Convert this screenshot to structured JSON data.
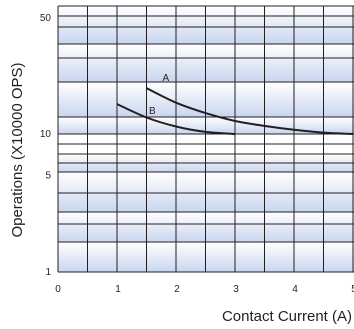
{
  "chart_data": {
    "type": "line",
    "title": "",
    "xlabel": "Contact Current (A)",
    "ylabel": "Operations (X10000 OPS)",
    "xlim": [
      0,
      5.5
    ],
    "ylim": [
      1,
      60
    ],
    "y_scale": "log",
    "x_ticks": [
      "0",
      "1",
      "2",
      "3",
      "4",
      "5"
    ],
    "y_ticks": [
      "1",
      "5",
      "10",
      "50"
    ],
    "grid": true,
    "legend": "none",
    "series": [
      {
        "name": "A",
        "x": [
          1.5,
          2.0,
          2.5,
          3.0,
          3.5,
          4.0,
          4.5,
          5.0
        ],
        "y": [
          19.0,
          15.5,
          13.4,
          12.0,
          11.2,
          10.6,
          10.2,
          10.0
        ]
      },
      {
        "name": "B",
        "x": [
          1.0,
          1.5,
          2.0,
          2.5,
          3.0
        ],
        "y": [
          15.2,
          12.6,
          11.1,
          10.3,
          10.0
        ]
      }
    ],
    "colors": {
      "band_fill": "#c9d5ef",
      "grid_line": "#231f20",
      "curve": "#231f20",
      "text": "#231f20"
    }
  }
}
